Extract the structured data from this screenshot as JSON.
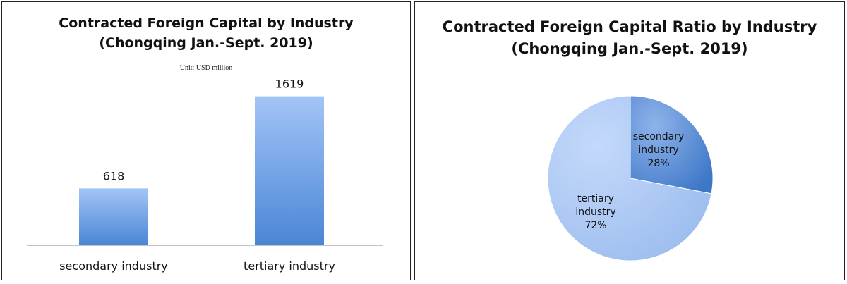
{
  "chart_data": [
    {
      "type": "bar",
      "title": [
        "Contracted Foreign Capital by Industry",
        "(Chongqing Jan.-Sept. 2019)"
      ],
      "subtitle": "Unit: USD million",
      "categories": [
        "secondary industry",
        "tertiary industry"
      ],
      "values": [
        618,
        1619
      ],
      "ylim": [
        0,
        1800
      ],
      "grid": false,
      "legend": "none",
      "colors": {
        "bar_top": "#a3c4f7",
        "bar_bottom": "#4a86d6"
      }
    },
    {
      "type": "pie",
      "title": [
        "Contracted Foreign Capital Ratio by Industry",
        "(Chongqing Jan.-Sept. 2019)"
      ],
      "slices": [
        {
          "label": [
            "secondary",
            "industry",
            "28%"
          ],
          "value": 28,
          "color_light": "#8fb3ea",
          "color_dark": "#3d77c7"
        },
        {
          "label": [
            "tertiary",
            "industry",
            "72%"
          ],
          "value": 72,
          "color_light": "#c4d9fb",
          "color_dark": "#9bbcee"
        }
      ],
      "legend": "none"
    }
  ]
}
